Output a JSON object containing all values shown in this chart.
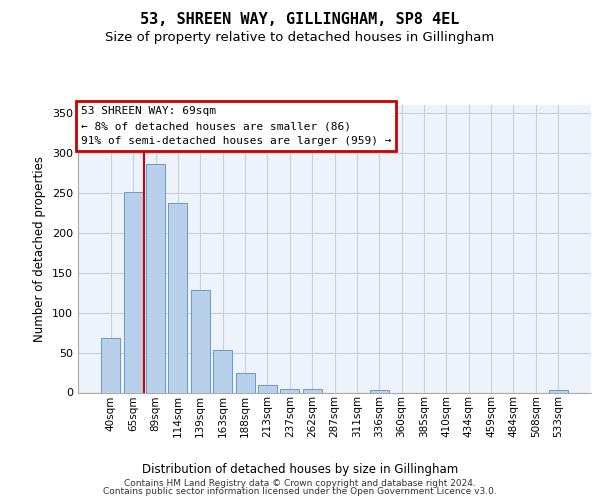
{
  "title": "53, SHREEN WAY, GILLINGHAM, SP8 4EL",
  "subtitle": "Size of property relative to detached houses in Gillingham",
  "xlabel": "Distribution of detached houses by size in Gillingham",
  "ylabel": "Number of detached properties",
  "bar_color": "#b8d0ea",
  "bar_edge_color": "#6699cc",
  "background_color": "#eef2fb",
  "grid_color": "#c8cedc",
  "categories": [
    "40sqm",
    "65sqm",
    "89sqm",
    "114sqm",
    "139sqm",
    "163sqm",
    "188sqm",
    "213sqm",
    "237sqm",
    "262sqm",
    "287sqm",
    "311sqm",
    "336sqm",
    "360sqm",
    "385sqm",
    "410sqm",
    "434sqm",
    "459sqm",
    "484sqm",
    "508sqm",
    "533sqm"
  ],
  "values": [
    68,
    251,
    286,
    237,
    128,
    53,
    24,
    10,
    5,
    4,
    0,
    0,
    3,
    0,
    0,
    0,
    0,
    0,
    0,
    0,
    3
  ],
  "annotation_text": "53 SHREEN WAY: 69sqm\n← 8% of detached houses are smaller (86)\n91% of semi-detached houses are larger (959) →",
  "annotation_box_facecolor": "#ffffff",
  "annotation_box_edgecolor": "#cc0000",
  "property_line_color": "#cc0000",
  "property_line_x": 1.5,
  "ylim": [
    0,
    360
  ],
  "yticks": [
    0,
    50,
    100,
    150,
    200,
    250,
    300,
    350
  ],
  "footer_line1": "Contains HM Land Registry data © Crown copyright and database right 2024.",
  "footer_line2": "Contains public sector information licensed under the Open Government Licence v3.0."
}
